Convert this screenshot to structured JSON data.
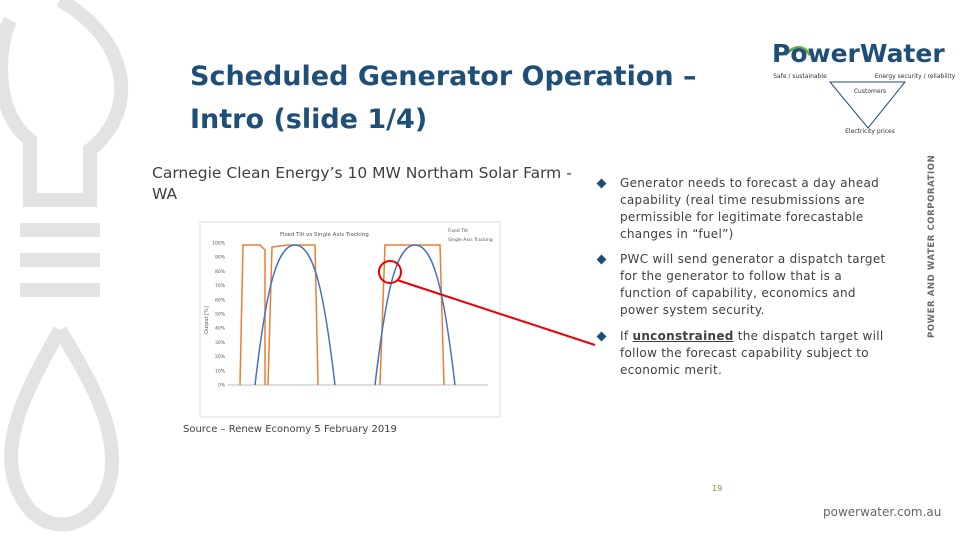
{
  "header": {
    "title_line1": "Scheduled Generator Operation –",
    "title_line2": "Intro (slide 1/4)"
  },
  "logo": {
    "name": "PowerWater",
    "labels": [
      "Safe / sustainable",
      "Energy security / reliability",
      "Customers",
      "Electricity prices"
    ]
  },
  "subtitle": "Carnegie Clean Energy’s 10 MW Northam Solar Farm - WA",
  "figure": {
    "title": "Fixed Tilt vs Single Axis Tracking",
    "legend": [
      "Fixed Tilt",
      "Single Axis Tracking"
    ],
    "y_label": "Output [%]",
    "yticks": [
      "0%",
      "10%",
      "20%",
      "30%",
      "40%",
      "50%",
      "60%",
      "70%",
      "80%",
      "90%",
      "100%"
    ]
  },
  "source": "Source – Renew Economy 5 February 2019",
  "bullets": [
    {
      "text": "Generator needs to forecast a day ahead capability (real time resubmissions are permissible for legitimate forecastable changes in “fuel”)"
    },
    {
      "text": "PWC will send generator a dispatch target for the generator to follow that is a function of capability, economics and power system security."
    },
    {
      "prefix": "If ",
      "emphasis": "unconstrained",
      "suffix": " the dispatch target will follow the forecast capability subject to economic merit."
    }
  ],
  "page_number": "19",
  "vertical_text": "POWER AND WATER CORPORATION",
  "footer": "powerwater.com.au"
}
